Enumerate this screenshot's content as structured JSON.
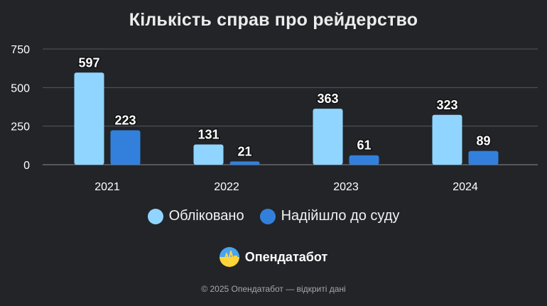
{
  "chart_data": {
    "type": "bar",
    "title": "Кількість справ про рейдерство",
    "categories": [
      "2021",
      "2022",
      "2023",
      "2024"
    ],
    "series": [
      {
        "name": "Обліковано",
        "values": [
          597,
          131,
          363,
          323
        ],
        "color": "#8fd5ff"
      },
      {
        "name": "Надійшло до суду",
        "values": [
          223,
          21,
          61,
          89
        ],
        "color": "#3280dc"
      }
    ],
    "yticks": [
      0,
      250,
      500,
      750
    ],
    "ylim": [
      0,
      750
    ],
    "grid": true,
    "legend_position": "bottom"
  },
  "brand": {
    "name": "Опендатабот",
    "logo_icon": "opendatabot-logo"
  },
  "footer": "© 2025 Опендатабот — відкриті дані"
}
